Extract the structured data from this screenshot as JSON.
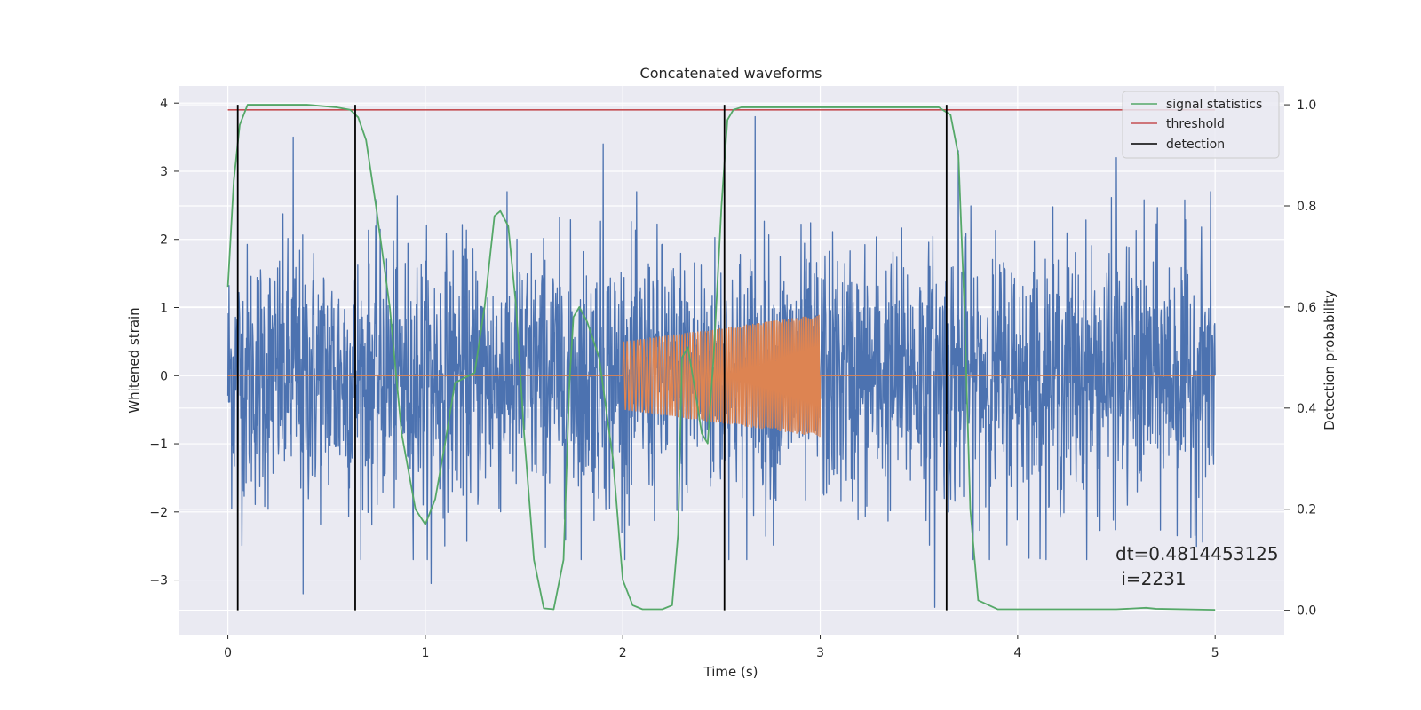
{
  "chart_data": {
    "type": "line",
    "title": "Concatenated waveforms",
    "xlabel": "Time (s)",
    "ylabel": "Whitened strain",
    "y2label": "Detection probability",
    "xlim": [
      -0.25,
      5.35
    ],
    "ylim": [
      -3.8,
      4.25
    ],
    "y2lim": [
      -0.048,
      1.037
    ],
    "xticks": [
      "0",
      "1",
      "2",
      "3",
      "4",
      "5"
    ],
    "yticks": [
      "−3",
      "−2",
      "−1",
      "0",
      "1",
      "2",
      "3",
      "4"
    ],
    "y2ticks": [
      "0.0",
      "0.2",
      "0.4",
      "0.6",
      "0.8",
      "1.0"
    ],
    "grid": true,
    "legend_position": "top-right",
    "series": [
      {
        "name": "",
        "axis": "left",
        "kind": "noise",
        "x_range": [
          0,
          5
        ],
        "typical_amplitude": 2.0,
        "peak_values": [
          {
            "x": 0.33,
            "y": 3.5
          },
          {
            "x": 1.9,
            "y": 3.4
          },
          {
            "x": 2.67,
            "y": 3.8
          },
          {
            "x": 0.38,
            "y": -3.2
          },
          {
            "x": 3.58,
            "y": -3.4
          },
          {
            "x": 3.7,
            "y": 3.3
          },
          {
            "x": 4.5,
            "y": 3.2
          },
          {
            "x": 0.05,
            "y": -2.4
          },
          {
            "x": 1.03,
            "y": -3.05
          }
        ],
        "color": "#4c72b0"
      },
      {
        "name": "",
        "axis": "left",
        "kind": "chirp",
        "x_range": [
          2.0,
          3.0
        ],
        "amplitude_start": 0.5,
        "amplitude_end": 0.9,
        "baseline": 0,
        "color": "#dd8452"
      },
      {
        "name": "signal statistics",
        "axis": "right",
        "color": "#55a868",
        "x": [
          0.0,
          0.03,
          0.06,
          0.1,
          0.2,
          0.4,
          0.55,
          0.62,
          0.66,
          0.7,
          0.75,
          0.82,
          0.88,
          0.95,
          1.0,
          1.05,
          1.1,
          1.15,
          1.2,
          1.25,
          1.3,
          1.35,
          1.38,
          1.42,
          1.46,
          1.5,
          1.55,
          1.6,
          1.65,
          1.7,
          1.73,
          1.75,
          1.78,
          1.82,
          1.88,
          1.95,
          2.0,
          2.05,
          2.1,
          2.15,
          2.2,
          2.25,
          2.28,
          2.3,
          2.33,
          2.36,
          2.4,
          2.43,
          2.46,
          2.5,
          2.53,
          2.56,
          2.6,
          2.8,
          3.0,
          3.3,
          3.6,
          3.66,
          3.7,
          3.73,
          3.76,
          3.8,
          3.9,
          4.2,
          4.5,
          4.6,
          4.65,
          4.7,
          5.0
        ],
        "y": [
          0.64,
          0.85,
          0.96,
          1.0,
          1.0,
          1.0,
          0.995,
          0.99,
          0.975,
          0.93,
          0.8,
          0.6,
          0.35,
          0.2,
          0.17,
          0.22,
          0.33,
          0.45,
          0.46,
          0.47,
          0.6,
          0.78,
          0.79,
          0.76,
          0.6,
          0.35,
          0.1,
          0.004,
          0.002,
          0.1,
          0.45,
          0.58,
          0.6,
          0.57,
          0.5,
          0.3,
          0.06,
          0.01,
          0.002,
          0.002,
          0.002,
          0.01,
          0.15,
          0.5,
          0.52,
          0.45,
          0.35,
          0.33,
          0.5,
          0.8,
          0.97,
          0.99,
          0.995,
          0.995,
          0.995,
          0.995,
          0.995,
          0.98,
          0.9,
          0.6,
          0.2,
          0.02,
          0.002,
          0.002,
          0.002,
          0.004,
          0.005,
          0.003,
          0.001
        ]
      },
      {
        "name": "threshold",
        "axis": "right",
        "color": "#c44e52",
        "x": [
          0,
          5
        ],
        "y": [
          0.99,
          0.99
        ]
      }
    ],
    "detections": {
      "name": "detection",
      "axis": "right",
      "color": "#000000",
      "x": [
        0.05,
        0.645,
        2.515,
        3.64
      ],
      "y_range": [
        0,
        1.0
      ]
    },
    "annotation": {
      "line1": "dt=0.4814453125",
      "line2": " i=2231",
      "x": 4.5,
      "y2": 0.1
    }
  }
}
